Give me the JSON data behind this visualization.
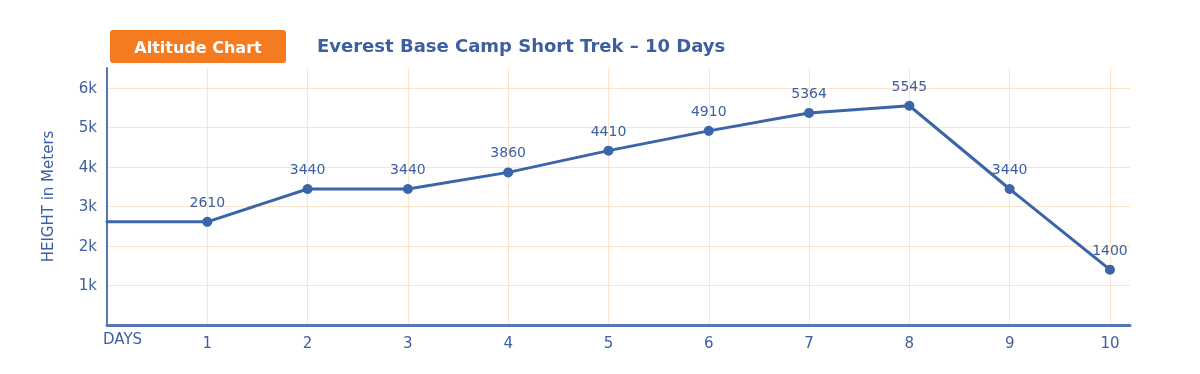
{
  "chart_data": {
    "type": "line",
    "title": "Altitude Chart",
    "subtitle": "Everest Base Camp Short Trek – 10 Days",
    "xlabel": "DAYS",
    "ylabel": "HEIGHT in Meters",
    "x": [
      0,
      1,
      2,
      3,
      4,
      5,
      6,
      7,
      8,
      9,
      10
    ],
    "series": [
      {
        "color": "#3a65a8",
        "values": [
          2610,
          2610,
          3440,
          3440,
          3860,
          4410,
          4910,
          5364,
          5545,
          3440,
          1400
        ],
        "value_labels": [
          null,
          "2610",
          "3440",
          "3440",
          "3860",
          "4410",
          "4910",
          "5364",
          "5545",
          "3440",
          "1400"
        ]
      }
    ],
    "xlim": [
      0,
      10.2
    ],
    "xticks": [
      1,
      2,
      3,
      4,
      5,
      6,
      7,
      8,
      9,
      10
    ],
    "ylim": [
      0,
      6500
    ],
    "yticks": [
      {
        "value": 1000,
        "label": "1k"
      },
      {
        "value": 2000,
        "label": "2k"
      },
      {
        "value": 3000,
        "label": "3k"
      },
      {
        "value": 4000,
        "label": "4k"
      },
      {
        "value": 5000,
        "label": "5k"
      },
      {
        "value": 6000,
        "label": "6k"
      }
    ],
    "grid": true,
    "marker": "circle",
    "line_style": "solid"
  }
}
